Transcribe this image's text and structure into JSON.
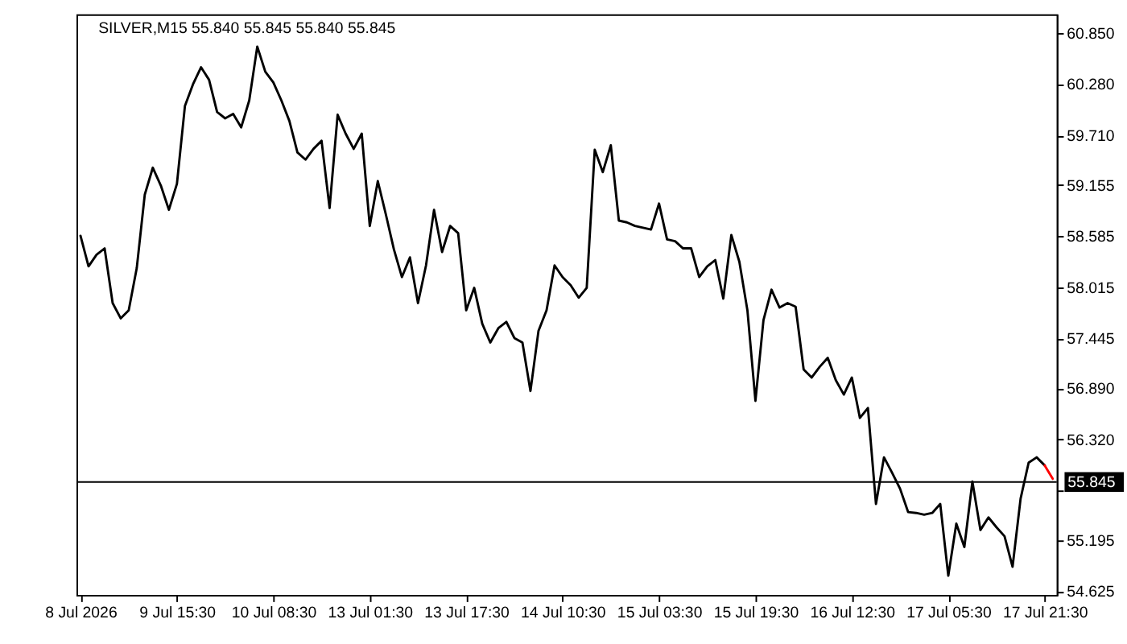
{
  "chart_data": {
    "type": "line",
    "title": "SILVER,M15 55.840 55.845 55.840 55.845",
    "categories": [
      "8 Jul 2026",
      null,
      null,
      null,
      null,
      null,
      null,
      null,
      null,
      null,
      null,
      null,
      "9 Jul 15:30",
      null,
      null,
      null,
      null,
      null,
      null,
      null,
      null,
      null,
      null,
      null,
      "10 Jul 08:30",
      null,
      null,
      null,
      null,
      null,
      null,
      null,
      null,
      null,
      null,
      null,
      "13 Jul 01:30",
      null,
      null,
      null,
      null,
      null,
      null,
      null,
      null,
      null,
      null,
      null,
      "13 Jul 17:30",
      null,
      null,
      null,
      null,
      null,
      null,
      null,
      null,
      null,
      null,
      null,
      "14 Jul 10:30",
      null,
      null,
      null,
      null,
      null,
      null,
      null,
      null,
      null,
      null,
      null,
      "15 Jul 03:30",
      null,
      null,
      null,
      null,
      null,
      null,
      null,
      null,
      null,
      null,
      null,
      "15 Jul 19:30",
      null,
      null,
      null,
      null,
      null,
      null,
      null,
      null,
      null,
      null,
      null,
      "16 Jul 12:30",
      null,
      null,
      null,
      null,
      null,
      null,
      null,
      null,
      null,
      null,
      null,
      "17 Jul 05:30",
      null,
      null,
      null,
      null,
      null,
      null,
      null,
      null,
      null,
      null,
      null,
      "17 Jul 21:30",
      null
    ],
    "series": [
      {
        "color": "#000000",
        "values": [
          58.59,
          58.25,
          58.38,
          58.45,
          57.84,
          57.67,
          57.76,
          58.23,
          59.05,
          59.35,
          59.15,
          58.88,
          59.17,
          60.04,
          60.28,
          60.47,
          60.33,
          59.97,
          59.9,
          59.95,
          59.8,
          60.1,
          60.7,
          60.42,
          60.3,
          60.1,
          59.87,
          59.52,
          59.44,
          59.56,
          59.65,
          58.9,
          59.94,
          59.73,
          59.56,
          59.73,
          58.7,
          59.2,
          58.83,
          58.44,
          58.13,
          58.35,
          57.84,
          58.26,
          58.88,
          58.41,
          58.7,
          58.62,
          57.76,
          58.01,
          57.61,
          57.4,
          57.56,
          57.63,
          57.45,
          57.4,
          56.86,
          57.53,
          57.76,
          58.26,
          58.13,
          58.04,
          57.9,
          58.01,
          59.55,
          59.3,
          59.6,
          58.76,
          58.74,
          58.7,
          58.68,
          58.66,
          58.95,
          58.55,
          58.53,
          58.45,
          58.45,
          58.13,
          58.25,
          58.32,
          57.89,
          58.6,
          58.3,
          57.76,
          56.75,
          57.65,
          57.99,
          57.79,
          57.84,
          57.8,
          57.1,
          57.01,
          57.13,
          57.23,
          56.98,
          56.82,
          57.01,
          56.56,
          56.67,
          55.6,
          56.12,
          55.95,
          55.77,
          55.51,
          55.5,
          55.48,
          55.5,
          55.6,
          54.8,
          55.38,
          55.12,
          55.85,
          55.31,
          55.45,
          55.34,
          55.24,
          54.9,
          55.66,
          56.06,
          56.12,
          56.03,
          null
        ]
      },
      {
        "color": "#ff0000",
        "values": [
          null,
          null,
          null,
          null,
          null,
          null,
          null,
          null,
          null,
          null,
          null,
          null,
          null,
          null,
          null,
          null,
          null,
          null,
          null,
          null,
          null,
          null,
          null,
          null,
          null,
          null,
          null,
          null,
          null,
          null,
          null,
          null,
          null,
          null,
          null,
          null,
          null,
          null,
          null,
          null,
          null,
          null,
          null,
          null,
          null,
          null,
          null,
          null,
          null,
          null,
          null,
          null,
          null,
          null,
          null,
          null,
          null,
          null,
          null,
          null,
          null,
          null,
          null,
          null,
          null,
          null,
          null,
          null,
          null,
          null,
          null,
          null,
          null,
          null,
          null,
          null,
          null,
          null,
          null,
          null,
          null,
          null,
          null,
          null,
          null,
          null,
          null,
          null,
          null,
          null,
          null,
          null,
          null,
          null,
          null,
          null,
          null,
          null,
          null,
          null,
          null,
          null,
          null,
          null,
          null,
          null,
          null,
          null,
          null,
          null,
          null,
          null,
          null,
          null,
          null,
          null,
          null,
          null,
          null,
          null,
          56.03,
          55.88
        ]
      }
    ],
    "ylim": [
      54.585,
      61.06
    ],
    "yticks": [
      {
        "value": 54.625,
        "label": "54.625"
      },
      {
        "value": 55.195,
        "label": "55.195"
      },
      {
        "value": 55.75,
        "label": null
      },
      {
        "value": 56.32,
        "label": "56.320"
      },
      {
        "value": 56.89,
        "label": "56.890"
      },
      {
        "value": 57.445,
        "label": "57.445"
      },
      {
        "value": 58.015,
        "label": "58.015"
      },
      {
        "value": 58.585,
        "label": "58.585"
      },
      {
        "value": 59.155,
        "label": "59.155"
      },
      {
        "value": 59.71,
        "label": "59.710"
      },
      {
        "value": 60.28,
        "label": "60.280"
      },
      {
        "value": 60.85,
        "label": "60.850"
      }
    ],
    "grid": false,
    "ref_lines": [
      {
        "axis": "y",
        "value": 55.845,
        "label": "55.845",
        "color": "#000000"
      }
    ]
  }
}
